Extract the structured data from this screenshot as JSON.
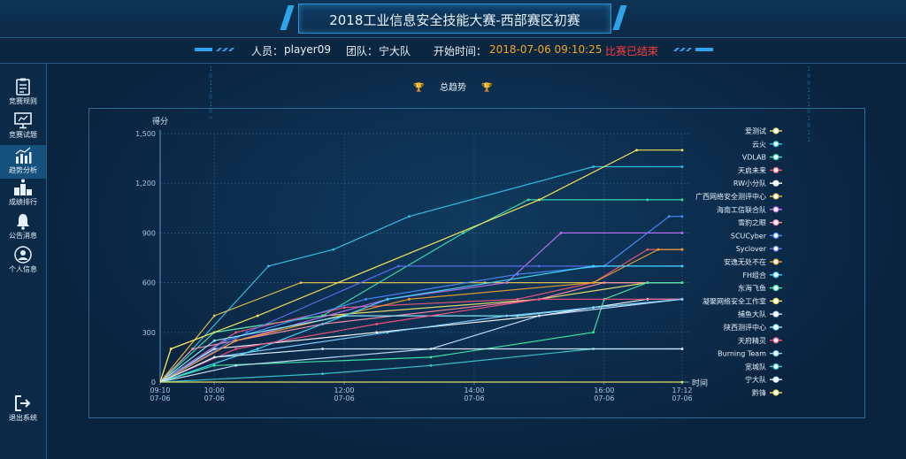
{
  "header": {
    "title": "2018工业信息安全技能大赛-西部赛区初赛"
  },
  "info": {
    "person_label": "人员：",
    "person_value": "player09",
    "team_label": "团队：",
    "team_value": "宁大队",
    "start_label": "开始时间：",
    "start_value": "2018-07-06 09:10:25",
    "status": "比赛已结束",
    "status_color": "#ff3b3b",
    "start_color": "#f5a623"
  },
  "sidebar": {
    "items": [
      {
        "label": "竞赛规则",
        "icon": "clipboard-icon"
      },
      {
        "label": "竞赛试题",
        "icon": "monitor-icon"
      },
      {
        "label": "趋势分析",
        "icon": "bar-chart-icon"
      },
      {
        "label": "成绩排行",
        "icon": "podium-icon"
      },
      {
        "label": "公告消息",
        "icon": "bell-icon"
      },
      {
        "label": "个人信息",
        "icon": "user-icon"
      }
    ],
    "logout_label": "退出系统"
  },
  "chart_data": {
    "type": "line",
    "title": "总趋势",
    "ylabel": "得分",
    "xlabel": "时间",
    "ylim": [
      0,
      1500
    ],
    "yticks": [
      "0",
      "300",
      "600",
      "900",
      "1,200",
      "1,500"
    ],
    "xticks": [
      {
        "t": 550,
        "time": "09:10",
        "date": "07-06"
      },
      {
        "t": 600,
        "time": "10:00",
        "date": "07-06"
      },
      {
        "t": 720,
        "time": "12:00",
        "date": "07-06"
      },
      {
        "t": 840,
        "time": "14:00",
        "date": "07-06"
      },
      {
        "t": 960,
        "time": "16:00",
        "date": "07-06"
      },
      {
        "t": 1032,
        "time": "17:12",
        "date": "07-06"
      }
    ],
    "x_unit": "minutes since 00:00 on 07-06",
    "legend_position": "right",
    "series": [
      {
        "name": "爱测试",
        "color": "#e8e070",
        "points": [
          [
            550,
            0
          ],
          [
            560,
            200
          ],
          [
            600,
            300
          ],
          [
            700,
            400
          ],
          [
            900,
            500
          ],
          [
            1000,
            600
          ],
          [
            1032,
            600
          ]
        ]
      },
      {
        "name": "云火",
        "color": "#2fc4e8",
        "points": [
          [
            550,
            0
          ],
          [
            580,
            200
          ],
          [
            650,
            700
          ],
          [
            710,
            800
          ],
          [
            780,
            1000
          ],
          [
            950,
            1300
          ],
          [
            1032,
            1300
          ]
        ]
      },
      {
        "name": "VDLAB",
        "color": "#38e0b0",
        "points": [
          [
            550,
            0
          ],
          [
            600,
            300
          ],
          [
            700,
            400
          ],
          [
            830,
            900
          ],
          [
            890,
            1100
          ],
          [
            1000,
            1100
          ],
          [
            1032,
            1100
          ]
        ]
      },
      {
        "name": "天启未来",
        "color": "#f05a7a",
        "points": [
          [
            550,
            0
          ],
          [
            620,
            300
          ],
          [
            720,
            450
          ],
          [
            880,
            500
          ],
          [
            950,
            600
          ],
          [
            1000,
            800
          ],
          [
            1032,
            800
          ]
        ]
      },
      {
        "name": "RW小分队",
        "color": "#ffffff",
        "points": [
          [
            550,
            0
          ],
          [
            600,
            200
          ],
          [
            750,
            300
          ],
          [
            900,
            400
          ],
          [
            1000,
            500
          ],
          [
            1032,
            500
          ]
        ]
      },
      {
        "name": "广西网络安全测评中心",
        "color": "#e6c44a",
        "points": [
          [
            550,
            0
          ],
          [
            600,
            400
          ],
          [
            680,
            600
          ],
          [
            850,
            600
          ],
          [
            1032,
            600
          ]
        ]
      },
      {
        "name": "海南工信联合队",
        "color": "#c070f0",
        "points": [
          [
            550,
            0
          ],
          [
            620,
            250
          ],
          [
            760,
            500
          ],
          [
            870,
            600
          ],
          [
            920,
            900
          ],
          [
            1032,
            900
          ]
        ]
      },
      {
        "name": "雪豹之眼",
        "color": "#ff8fa6",
        "points": [
          [
            550,
            0
          ],
          [
            580,
            200
          ],
          [
            700,
            350
          ],
          [
            900,
            500
          ],
          [
            960,
            600
          ],
          [
            1032,
            600
          ]
        ]
      },
      {
        "name": "SCUCyber",
        "color": "#4a8cff",
        "points": [
          [
            550,
            0
          ],
          [
            610,
            250
          ],
          [
            740,
            500
          ],
          [
            880,
            650
          ],
          [
            960,
            700
          ],
          [
            1020,
            1000
          ],
          [
            1032,
            1000
          ]
        ]
      },
      {
        "name": "Syclover",
        "color": "#5a6ef0",
        "points": [
          [
            550,
            0
          ],
          [
            630,
            300
          ],
          [
            770,
            700
          ],
          [
            900,
            700
          ],
          [
            1032,
            700
          ]
        ]
      },
      {
        "name": "安逸无处不在",
        "color": "#f0a030",
        "points": [
          [
            550,
            0
          ],
          [
            620,
            250
          ],
          [
            780,
            500
          ],
          [
            950,
            600
          ],
          [
            1010,
            800
          ],
          [
            1032,
            800
          ]
        ]
      },
      {
        "name": "FH组合",
        "color": "#3fd9ff",
        "points": [
          [
            550,
            0
          ],
          [
            640,
            200
          ],
          [
            760,
            500
          ],
          [
            950,
            700
          ],
          [
            1032,
            700
          ]
        ]
      },
      {
        "name": "东海飞鱼",
        "color": "#3fe8a8",
        "points": [
          [
            550,
            0
          ],
          [
            600,
            100
          ],
          [
            800,
            150
          ],
          [
            950,
            300
          ],
          [
            960,
            500
          ],
          [
            1000,
            600
          ],
          [
            1032,
            600
          ]
        ]
      },
      {
        "name": "凝聚网络安全工作室",
        "color": "#ffe85a",
        "points": [
          [
            550,
            0
          ],
          [
            560,
            200
          ],
          [
            640,
            400
          ],
          [
            900,
            1100
          ],
          [
            990,
            1400
          ],
          [
            1032,
            1400
          ]
        ]
      },
      {
        "name": "捕鱼大队",
        "color": "#c8e0ff",
        "points": [
          [
            550,
            0
          ],
          [
            620,
            100
          ],
          [
            800,
            200
          ],
          [
            900,
            400
          ],
          [
            1032,
            500
          ]
        ]
      },
      {
        "name": "陕西测评中心",
        "color": "#8af0ff",
        "points": [
          [
            550,
            0
          ],
          [
            600,
            250
          ],
          [
            720,
            400
          ],
          [
            880,
            400
          ],
          [
            950,
            450
          ],
          [
            1032,
            500
          ]
        ]
      },
      {
        "name": "天府精灵",
        "color": "#ff5080",
        "points": [
          [
            550,
            0
          ],
          [
            620,
            200
          ],
          [
            750,
            350
          ],
          [
            900,
            500
          ],
          [
            1032,
            500
          ]
        ]
      },
      {
        "name": "Burning Team",
        "color": "#7fd0ff",
        "points": [
          [
            550,
            0
          ],
          [
            600,
            150
          ],
          [
            760,
            300
          ],
          [
            870,
            400
          ],
          [
            1032,
            500
          ]
        ]
      },
      {
        "name": "宽城队",
        "color": "#38c8d0",
        "points": [
          [
            550,
            0
          ],
          [
            700,
            50
          ],
          [
            800,
            100
          ],
          [
            950,
            200
          ],
          [
            1032,
            200
          ]
        ]
      },
      {
        "name": "宁大队",
        "color": "#d8f0ff",
        "points": [
          [
            550,
            0
          ],
          [
            600,
            150
          ],
          [
            700,
            200
          ],
          [
            1032,
            200
          ]
        ]
      },
      {
        "name": "黔锋",
        "color": "#e8e060",
        "points": [
          [
            550,
            0
          ],
          [
            1032,
            0
          ]
        ]
      }
    ]
  }
}
